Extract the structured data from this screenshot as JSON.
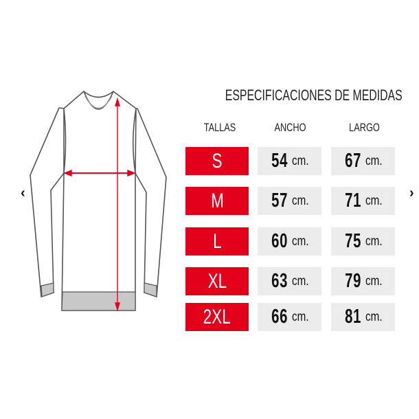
{
  "title": "ESPECIFICACIONES DE MEDIDAS",
  "headers": {
    "size": "TALLAS",
    "width": "ANCHO",
    "length": "LARGO"
  },
  "unit": "cm.",
  "rows": [
    {
      "size": "S",
      "width": "54",
      "length": "67"
    },
    {
      "size": "M",
      "width": "57",
      "length": "71"
    },
    {
      "size": "L",
      "width": "60",
      "length": "75"
    },
    {
      "size": "XL",
      "width": "63",
      "length": "79"
    },
    {
      "size": "2XL",
      "width": "66",
      "length": "81"
    }
  ],
  "nav": {
    "prev": "‹",
    "next": "›"
  },
  "colors": {
    "size_bg": "#e3001b",
    "measure_bg": "#ececec",
    "measure_line": "#e3001b"
  },
  "icons": {
    "prev": "chevron-left-icon",
    "next": "chevron-right-icon"
  }
}
